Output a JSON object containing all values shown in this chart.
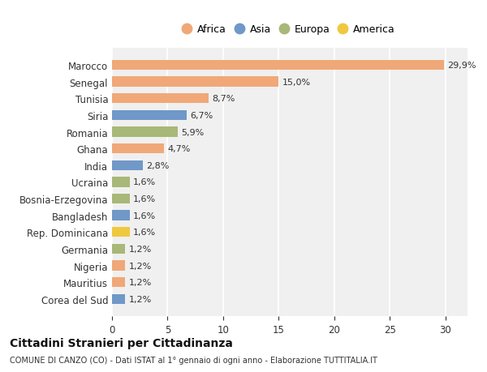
{
  "categories": [
    "Marocco",
    "Senegal",
    "Tunisia",
    "Siria",
    "Romania",
    "Ghana",
    "India",
    "Ucraina",
    "Bosnia-Erzegovina",
    "Bangladesh",
    "Rep. Dominicana",
    "Germania",
    "Nigeria",
    "Mauritius",
    "Corea del Sud"
  ],
  "values": [
    29.9,
    15.0,
    8.7,
    6.7,
    5.9,
    4.7,
    2.8,
    1.6,
    1.6,
    1.6,
    1.6,
    1.2,
    1.2,
    1.2,
    1.2
  ],
  "labels": [
    "29,9%",
    "15,0%",
    "8,7%",
    "6,7%",
    "5,9%",
    "4,7%",
    "2,8%",
    "1,6%",
    "1,6%",
    "1,6%",
    "1,6%",
    "1,2%",
    "1,2%",
    "1,2%",
    "1,2%"
  ],
  "continent": [
    "Africa",
    "Africa",
    "Africa",
    "Asia",
    "Europa",
    "Africa",
    "Asia",
    "Europa",
    "Europa",
    "Asia",
    "America",
    "Europa",
    "Africa",
    "Africa",
    "Asia"
  ],
  "colors": {
    "Africa": "#F0A878",
    "Asia": "#7098C8",
    "Europa": "#A8B878",
    "America": "#F0C840"
  },
  "legend_items": [
    "Africa",
    "Asia",
    "Europa",
    "America"
  ],
  "legend_colors": [
    "#F0A878",
    "#7098C8",
    "#A8B878",
    "#F0C840"
  ],
  "title": "Cittadini Stranieri per Cittadinanza",
  "subtitle": "COMUNE DI CANZO (CO) - Dati ISTAT al 1° gennaio di ogni anno - Elaborazione TUTTITALIA.IT",
  "xlim": [
    0,
    32
  ],
  "xticks": [
    0,
    5,
    10,
    15,
    20,
    25,
    30
  ],
  "bg_color": "#ffffff",
  "plot_bg_color": "#f0f0f0"
}
